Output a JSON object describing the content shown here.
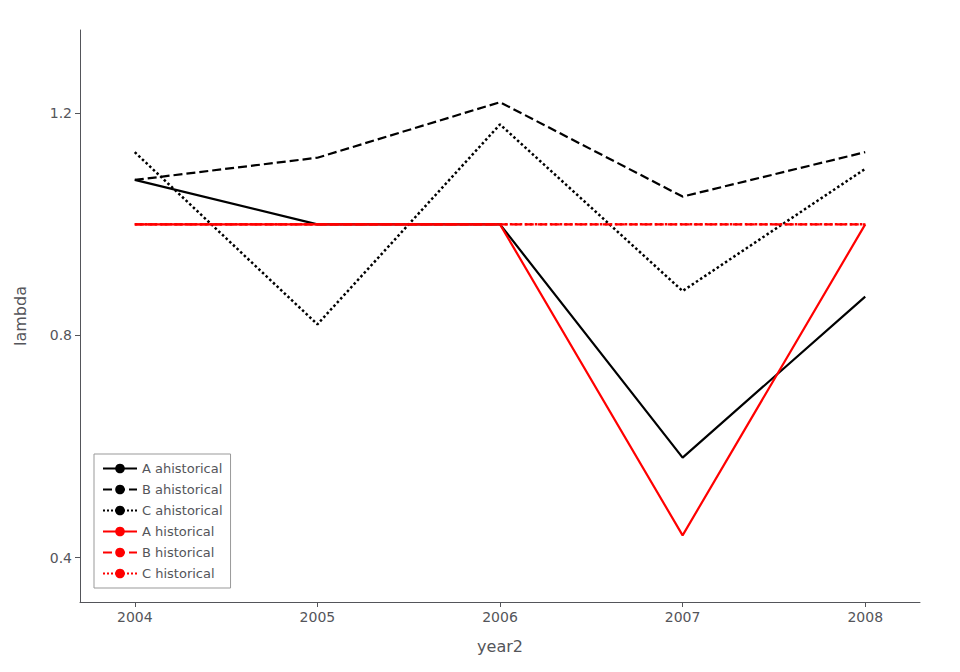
{
  "chart_data": {
    "type": "line",
    "x": [
      2004,
      2005,
      2006,
      2007,
      2008
    ],
    "series": [
      {
        "name": "A ahistorical",
        "color": "#000000",
        "line_style": "solid",
        "values": [
          1.08,
          1.0,
          1.0,
          0.58,
          0.87
        ]
      },
      {
        "name": "B ahistorical",
        "color": "#000000",
        "line_style": "dashed",
        "values": [
          1.08,
          1.12,
          1.22,
          1.05,
          1.13
        ]
      },
      {
        "name": "C ahistorical",
        "color": "#000000",
        "line_style": "dotted",
        "values": [
          1.13,
          0.82,
          1.18,
          0.88,
          1.1
        ]
      },
      {
        "name": "A historical",
        "color": "#ff0000",
        "line_style": "solid",
        "values": [
          1.0,
          1.0,
          1.0,
          0.44,
          1.0
        ]
      },
      {
        "name": "B historical",
        "color": "#ff0000",
        "line_style": "dashed",
        "values": [
          1.0,
          1.0,
          1.0,
          1.0,
          1.0
        ]
      },
      {
        "name": "C historical",
        "color": "#ff0000",
        "line_style": "dotted",
        "values": [
          1.0,
          1.0,
          1.0,
          1.0,
          1.0
        ]
      }
    ],
    "xlabel": "year2",
    "ylabel": "lambda",
    "xlim": [
      2003.7,
      2008.3
    ],
    "xticks": [
      2004,
      2005,
      2006,
      2007,
      2008
    ],
    "ylim": [
      0.32,
      1.35
    ],
    "yticks": [
      0.4,
      0.8,
      1.2
    ],
    "grid": false,
    "legend": "lower left"
  }
}
